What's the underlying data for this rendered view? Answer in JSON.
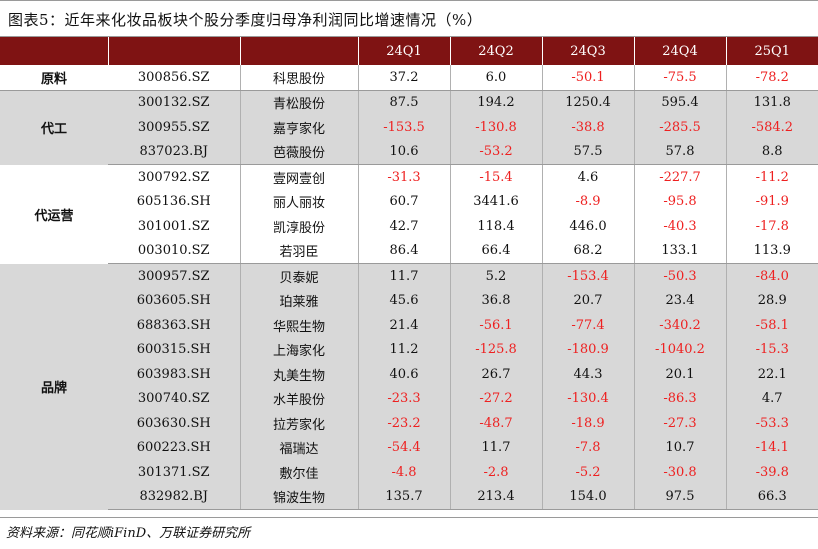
{
  "title": "图表5：近年来化妆品板块个股分季度归母净利润同比增速情况（%）",
  "columns": [
    "",
    "",
    "",
    "24Q1",
    "24Q2",
    "24Q3",
    "24Q4",
    "25Q1"
  ],
  "groups": [
    {
      "category": "原料",
      "shade": "white",
      "rows": [
        {
          "code": "300856.SZ",
          "name": "科思股份",
          "values": [
            "37.2",
            "6.0",
            "-50.1",
            "-75.5",
            "-78.2"
          ]
        }
      ]
    },
    {
      "category": "代工",
      "shade": "grey",
      "rows": [
        {
          "code": "300132.SZ",
          "name": "青松股份",
          "values": [
            "87.5",
            "194.2",
            "1250.4",
            "595.4",
            "131.8"
          ]
        },
        {
          "code": "300955.SZ",
          "name": "嘉亨家化",
          "values": [
            "-153.5",
            "-130.8",
            "-38.8",
            "-285.5",
            "-584.2"
          ]
        },
        {
          "code": "837023.BJ",
          "name": "芭薇股份",
          "values": [
            "10.6",
            "-53.2",
            "57.5",
            "57.8",
            "8.8"
          ]
        }
      ]
    },
    {
      "category": "代运营",
      "shade": "white",
      "rows": [
        {
          "code": "300792.SZ",
          "name": "壹网壹创",
          "values": [
            "-31.3",
            "-15.4",
            "4.6",
            "-227.7",
            "-11.2"
          ]
        },
        {
          "code": "605136.SH",
          "name": "丽人丽妆",
          "values": [
            "60.7",
            "3441.6",
            "-8.9",
            "-95.8",
            "-91.9"
          ]
        },
        {
          "code": "301001.SZ",
          "name": "凯淳股份",
          "values": [
            "42.7",
            "118.4",
            "446.0",
            "-40.3",
            "-17.8"
          ]
        },
        {
          "code": "003010.SZ",
          "name": "若羽臣",
          "values": [
            "86.4",
            "66.4",
            "68.2",
            "133.1",
            "113.9"
          ]
        }
      ]
    },
    {
      "category": "品牌",
      "shade": "grey",
      "rows": [
        {
          "code": "300957.SZ",
          "name": "贝泰妮",
          "values": [
            "11.7",
            "5.2",
            "-153.4",
            "-50.3",
            "-84.0"
          ]
        },
        {
          "code": "603605.SH",
          "name": "珀莱雅",
          "values": [
            "45.6",
            "36.8",
            "20.7",
            "23.4",
            "28.9"
          ]
        },
        {
          "code": "688363.SH",
          "name": "华熙生物",
          "values": [
            "21.4",
            "-56.1",
            "-77.4",
            "-340.2",
            "-58.1"
          ]
        },
        {
          "code": "600315.SH",
          "name": "上海家化",
          "values": [
            "11.2",
            "-125.8",
            "-180.9",
            "-1040.2",
            "-15.3"
          ]
        },
        {
          "code": "603983.SH",
          "name": "丸美生物",
          "values": [
            "40.6",
            "26.7",
            "44.3",
            "20.1",
            "22.1"
          ]
        },
        {
          "code": "300740.SZ",
          "name": "水羊股份",
          "values": [
            "-23.3",
            "-27.2",
            "-130.4",
            "-86.3",
            "4.7"
          ]
        },
        {
          "code": "603630.SH",
          "name": "拉芳家化",
          "values": [
            "-23.2",
            "-48.7",
            "-18.9",
            "-27.3",
            "-53.3"
          ]
        },
        {
          "code": "600223.SH",
          "name": "福瑞达",
          "values": [
            "-54.4",
            "11.7",
            "-7.8",
            "10.7",
            "-14.1"
          ]
        },
        {
          "code": "301371.SZ",
          "name": "敷尔佳",
          "values": [
            "-4.8",
            "-2.8",
            "-5.2",
            "-30.8",
            "-39.8"
          ]
        },
        {
          "code": "832982.BJ",
          "name": "锦波生物",
          "values": [
            "135.7",
            "213.4",
            "154.0",
            "97.5",
            "66.3"
          ]
        }
      ]
    }
  ],
  "footer": "资料来源：同花顺iFinD、万联证券研究所",
  "colors": {
    "header_bg": "#7f1313",
    "negative": "#ee2020",
    "shade_grey": "#d8d8d8"
  }
}
